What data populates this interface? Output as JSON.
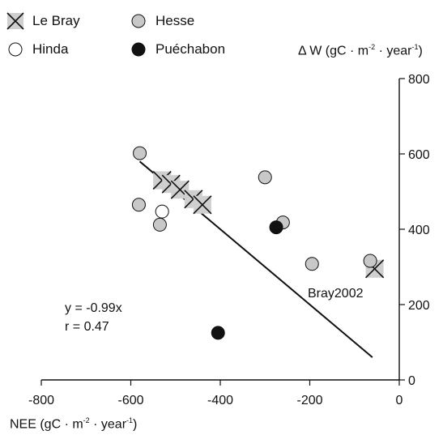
{
  "legend": [
    {
      "label": "Le Bray",
      "marker": "x-square"
    },
    {
      "label": "Hesse",
      "marker": "gray-circle"
    },
    {
      "label": "Hinda",
      "marker": "open-circle"
    },
    {
      "label": "Puéchabon",
      "marker": "black-circle"
    }
  ],
  "chart_data": {
    "type": "scatter",
    "xlabel_main": "NEE (gC · m",
    "xlabel_exp1": "-2",
    "xlabel_mid": " · year",
    "xlabel_exp2": "-1",
    "xlabel_end": ")",
    "ylabel_main": "Δ W (gC · m",
    "ylabel_exp1": "-2",
    "ylabel_mid": " · year",
    "ylabel_exp2": "-1",
    "ylabel_end": ")",
    "xlim": [
      -800,
      0
    ],
    "ylim": [
      0,
      800
    ],
    "x_ticks": [
      -800,
      -600,
      -400,
      -200,
      0
    ],
    "y_ticks": [
      0,
      200,
      400,
      600,
      800
    ],
    "grid": false,
    "legend_placement": "top-left",
    "series": [
      {
        "name": "Le Bray",
        "marker": "x-square",
        "x": [
          -530,
          -510,
          -490,
          -460,
          -440,
          -55
        ],
        "y": [
          530,
          520,
          505,
          480,
          465,
          295
        ]
      },
      {
        "name": "Hesse",
        "marker": "gray-circle",
        "x": [
          -580,
          -582,
          -535,
          -300,
          -260,
          -195,
          -65
        ],
        "y": [
          602,
          465,
          412,
          538,
          418,
          308,
          316
        ]
      },
      {
        "name": "Hinda",
        "marker": "open-circle",
        "x": [
          -530
        ],
        "y": [
          447
        ]
      },
      {
        "name": "Puéchabon",
        "marker": "black-circle",
        "x": [
          -275,
          -405
        ],
        "y": [
          405,
          125
        ]
      }
    ],
    "fit_line": {
      "x": [
        -580,
        -60
      ],
      "y": [
        580,
        60
      ]
    },
    "equation": "y = -0.99x",
    "r_value": "r = 0.47",
    "annotation": "Bray2002"
  }
}
